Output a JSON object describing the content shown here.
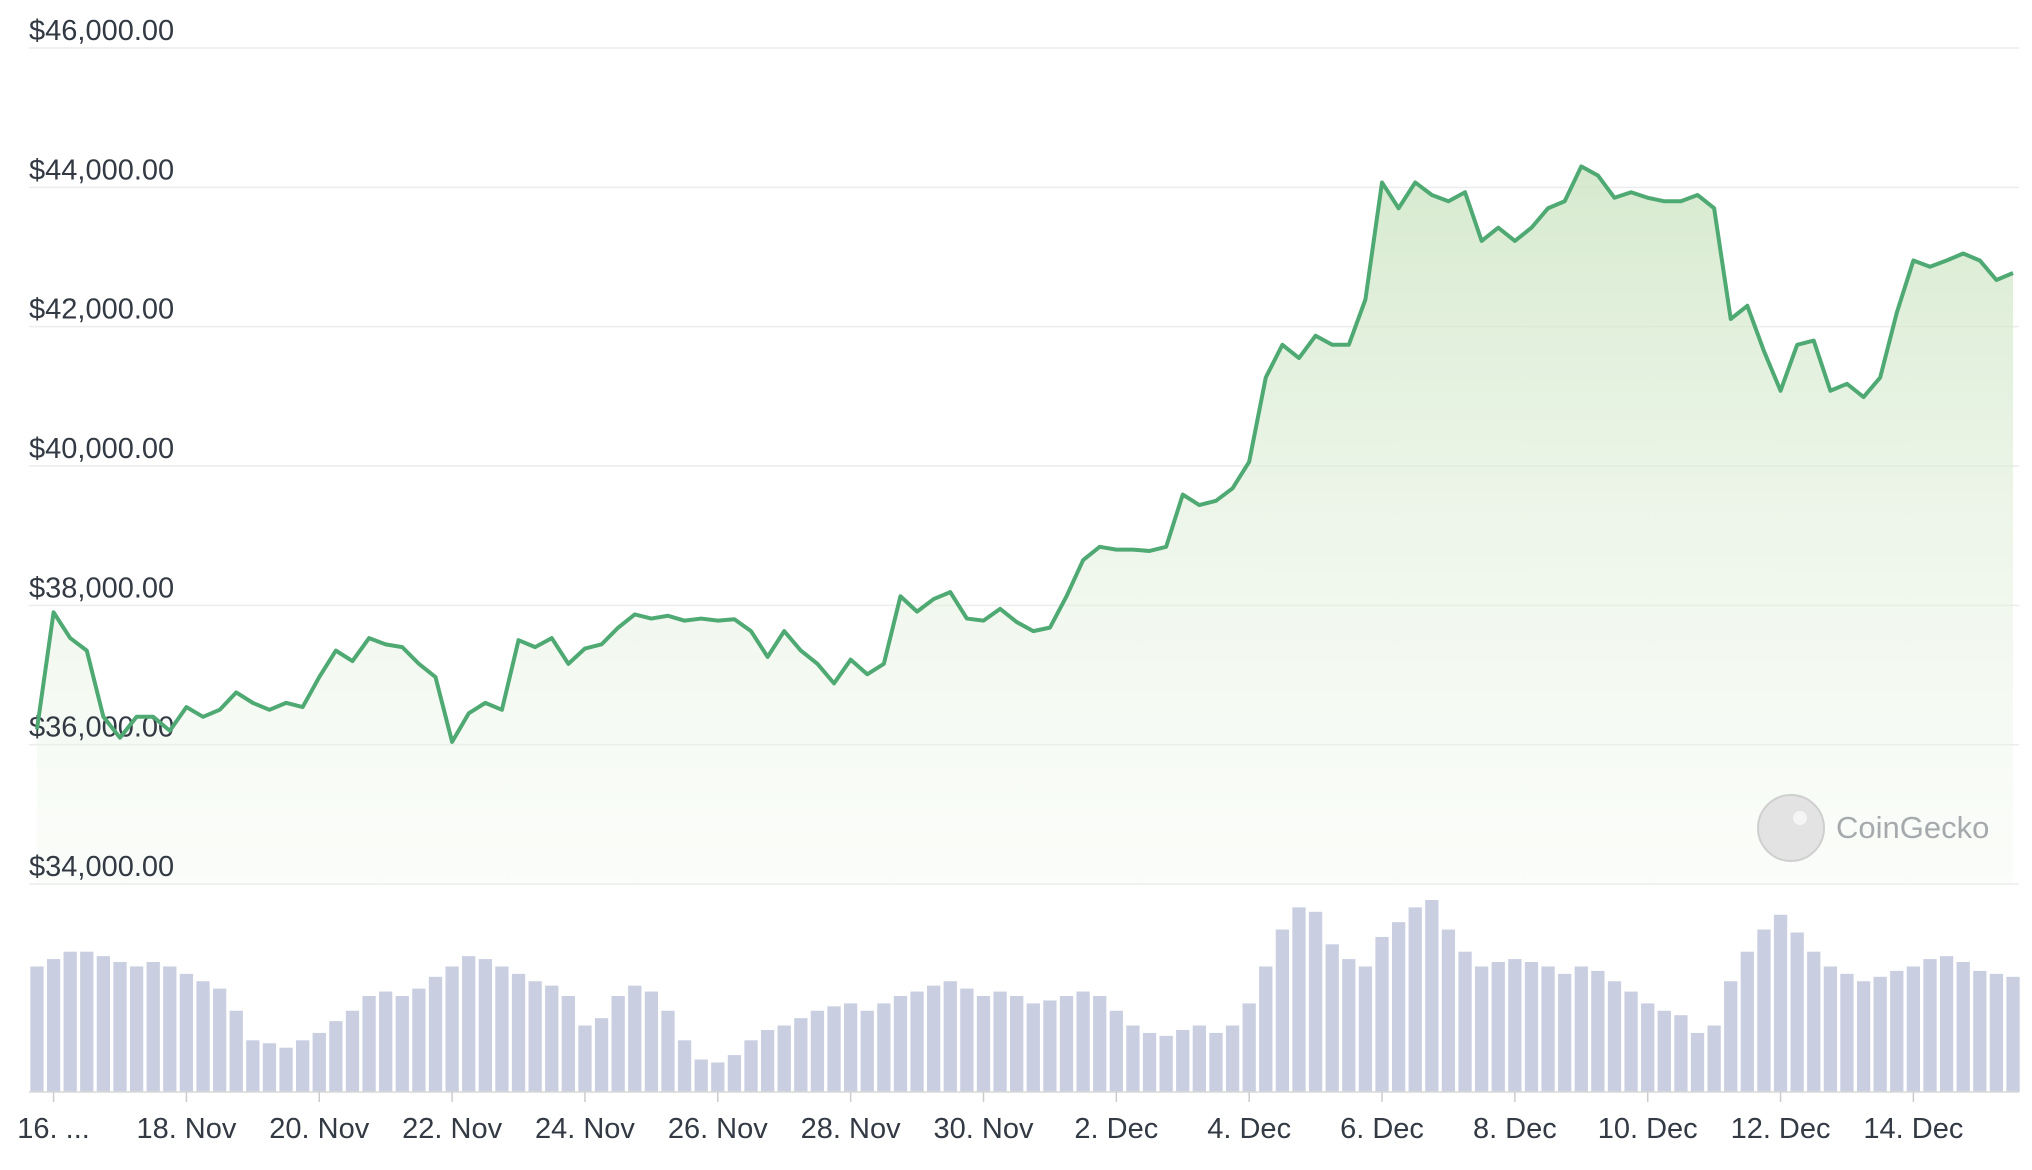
{
  "chart_data": {
    "type": "line",
    "watermark": "CoinGecko",
    "x": [
      15.75,
      16,
      16.25,
      16.5,
      16.75,
      17,
      17.25,
      17.5,
      17.75,
      18,
      18.25,
      18.5,
      18.75,
      19,
      19.25,
      19.5,
      19.75,
      20,
      20.25,
      20.5,
      20.75,
      21,
      21.25,
      21.5,
      21.75,
      22,
      22.25,
      22.5,
      22.75,
      23,
      23.25,
      23.5,
      23.75,
      24,
      24.25,
      24.5,
      24.75,
      25,
      25.25,
      25.5,
      25.75,
      26,
      26.25,
      26.5,
      26.75,
      27,
      27.25,
      27.5,
      27.75,
      28,
      28.25,
      28.5,
      28.75,
      29,
      29.25,
      29.5,
      29.75,
      30,
      30.25,
      30.5,
      30.75,
      31,
      31.25,
      31.5,
      31.75,
      32,
      32.25,
      32.5,
      32.75,
      33,
      33.25,
      33.5,
      33.75,
      34,
      34.25,
      34.5,
      34.75,
      35,
      35.25,
      35.5,
      35.75,
      36,
      36.25,
      36.5,
      36.75,
      37,
      37.25,
      37.5,
      37.75,
      38,
      38.25,
      38.5,
      38.75,
      39,
      39.25,
      39.5,
      39.75,
      40,
      40.25,
      40.5,
      40.75,
      41,
      41.25,
      41.5,
      41.75,
      42,
      42.25,
      42.5,
      42.75,
      43,
      43.25,
      43.5,
      43.75,
      44,
      44.25,
      44.5,
      44.75,
      45,
      45.25,
      45.5
    ],
    "series": [
      {
        "color": "#4fa973",
        "values": [
          36220,
          37900,
          37530,
          37350,
          36400,
          36100,
          36400,
          36400,
          36200,
          36540,
          36400,
          36500,
          36750,
          36600,
          36500,
          36600,
          36540,
          36970,
          37350,
          37200,
          37530,
          37440,
          37400,
          37160,
          36970,
          36040,
          36450,
          36600,
          36500,
          37500,
          37400,
          37530,
          37160,
          37380,
          37440,
          37680,
          37870,
          37810,
          37850,
          37780,
          37810,
          37780,
          37800,
          37630,
          37260,
          37630,
          37350,
          37160,
          36880,
          37220,
          37010,
          37160,
          38130,
          37910,
          38090,
          38190,
          37810,
          37780,
          37950,
          37760,
          37630,
          37680,
          38130,
          38650,
          38840,
          38800,
          38800,
          38780,
          38840,
          39590,
          39440,
          39500,
          39680,
          40060,
          41270,
          41740,
          41550,
          41870,
          41740,
          41740,
          42390,
          44070,
          43700,
          44070,
          43890,
          43800,
          43930,
          43230,
          43420,
          43230,
          43420,
          43700,
          43800,
          44300,
          44170,
          43850,
          43930,
          43850,
          43800,
          43800,
          43890,
          43700,
          42110,
          42300,
          41650,
          41080,
          41740,
          41800,
          41080,
          41180,
          40990,
          41270,
          42200,
          42950,
          42860,
          42950,
          43050,
          42950,
          42670,
          42770
        ]
      },
      {
        "type": "bar",
        "color": "#c9cfe0",
        "values": [
          85,
          90,
          95,
          95,
          92,
          88,
          85,
          88,
          85,
          80,
          75,
          70,
          55,
          35,
          33,
          30,
          35,
          40,
          48,
          55,
          65,
          68,
          65,
          70,
          78,
          85,
          92,
          90,
          85,
          80,
          75,
          72,
          65,
          45,
          50,
          65,
          72,
          68,
          55,
          35,
          22,
          20,
          25,
          35,
          42,
          45,
          50,
          55,
          58,
          60,
          55,
          60,
          65,
          68,
          72,
          75,
          70,
          65,
          68,
          65,
          60,
          62,
          65,
          68,
          65,
          55,
          45,
          40,
          38,
          42,
          45,
          40,
          45,
          60,
          85,
          110,
          125,
          122,
          100,
          90,
          85,
          105,
          115,
          125,
          130,
          110,
          95,
          85,
          88,
          90,
          88,
          85,
          80,
          85,
          82,
          75,
          68,
          60,
          55,
          52,
          40,
          45,
          75,
          95,
          110,
          120,
          108,
          95,
          85,
          80,
          75,
          78,
          82,
          85,
          90,
          92,
          88,
          82,
          80,
          78
        ]
      }
    ],
    "xlim": [
      15.63,
      45.59
    ],
    "xticks": [
      {
        "value": 16,
        "label": "16. ..."
      },
      {
        "value": 18,
        "label": "18. Nov"
      },
      {
        "value": 20,
        "label": "20. Nov"
      },
      {
        "value": 22,
        "label": "22. Nov"
      },
      {
        "value": 24,
        "label": "24. Nov"
      },
      {
        "value": 26,
        "label": "26. Nov"
      },
      {
        "value": 28,
        "label": "28. Nov"
      },
      {
        "value": 30,
        "label": "30. Nov"
      },
      {
        "value": 32,
        "label": "2. Dec"
      },
      {
        "value": 34,
        "label": "4. Dec"
      },
      {
        "value": 36,
        "label": "6. Dec"
      },
      {
        "value": 38,
        "label": "8. Dec"
      },
      {
        "value": 40,
        "label": "10. Dec"
      },
      {
        "value": 42,
        "label": "12. Dec"
      },
      {
        "value": 44,
        "label": "14. Dec"
      }
    ],
    "ylim": [
      34000,
      46000
    ],
    "yticks": [
      {
        "value": 34000,
        "label": "$34,000.00"
      },
      {
        "value": 36000,
        "label": "$36,000.00"
      },
      {
        "value": 38000,
        "label": "$38,000.00"
      },
      {
        "value": 40000,
        "label": "$40,000.00"
      },
      {
        "value": 42000,
        "label": "$42,000.00"
      },
      {
        "value": 44000,
        "label": "$44,000.00"
      },
      {
        "value": 46000,
        "label": "$46,000.00"
      }
    ],
    "grid": true
  }
}
